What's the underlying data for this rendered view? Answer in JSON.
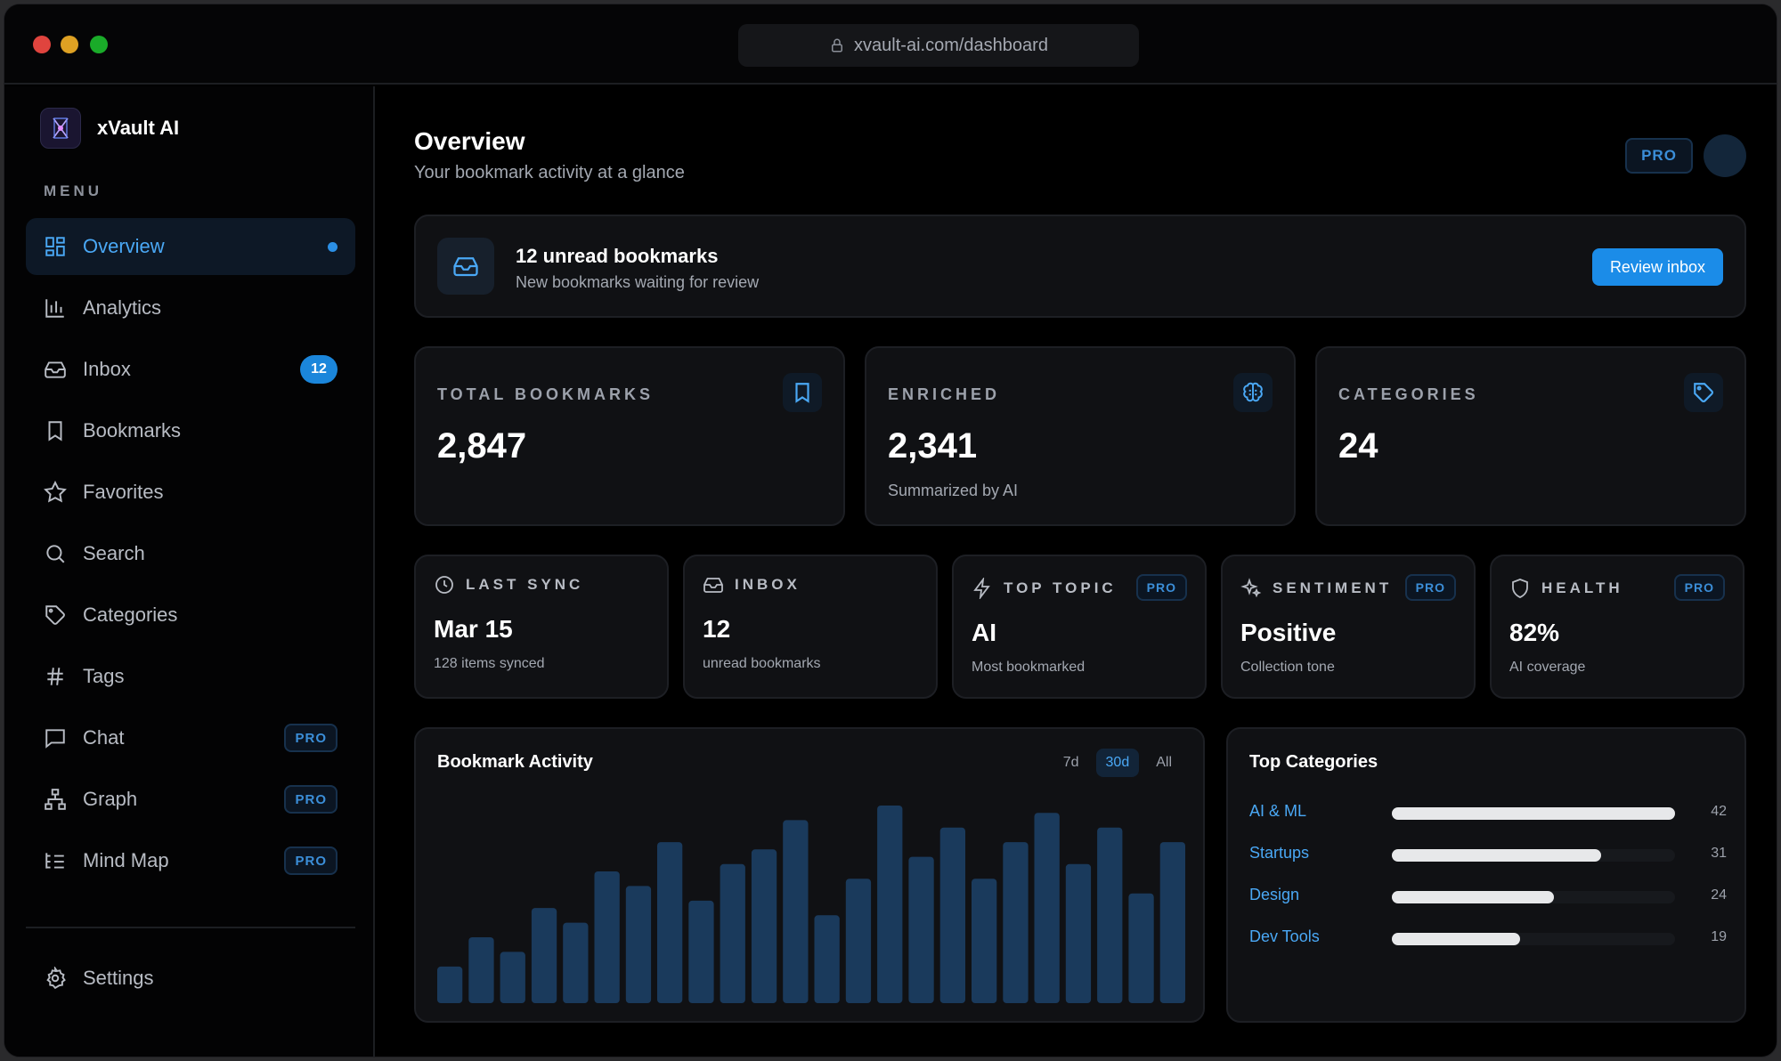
{
  "url": "xvault-ai.com/dashboard",
  "brand": {
    "name": "xVault AI"
  },
  "sidebar": {
    "menu_label": "MENU",
    "items": [
      {
        "label": "Overview",
        "icon": "grid-icon",
        "active": true
      },
      {
        "label": "Analytics",
        "icon": "bar-chart-icon"
      },
      {
        "label": "Inbox",
        "icon": "inbox-icon",
        "count": "12"
      },
      {
        "label": "Bookmarks",
        "icon": "bookmark-icon"
      },
      {
        "label": "Favorites",
        "icon": "star-icon"
      },
      {
        "label": "Search",
        "icon": "search-icon"
      },
      {
        "label": "Categories",
        "icon": "tag-icon"
      },
      {
        "label": "Tags",
        "icon": "hash-icon"
      },
      {
        "label": "Chat",
        "icon": "chat-icon",
        "badge": "PRO"
      },
      {
        "label": "Graph",
        "icon": "graph-icon",
        "badge": "PRO"
      },
      {
        "label": "Mind Map",
        "icon": "mind-map-icon",
        "badge": "PRO"
      }
    ],
    "settings_label": "Settings"
  },
  "header": {
    "title": "Overview",
    "subtitle": "Your bookmark activity at a glance",
    "plan_badge": "PRO"
  },
  "banner": {
    "title": "12 unread bookmarks",
    "subtitle": "New bookmarks waiting for review",
    "button": "Review inbox"
  },
  "stats": [
    {
      "label": "TOTAL BOOKMARKS",
      "value": "2,847",
      "note": "",
      "icon": "bookmark-icon"
    },
    {
      "label": "ENRICHED",
      "value": "2,341",
      "note": "Summarized by AI",
      "icon": "brain-icon"
    },
    {
      "label": "CATEGORIES",
      "value": "24",
      "note": "",
      "icon": "tag-icon"
    }
  ],
  "mini_stats": [
    {
      "label": "LAST SYNC",
      "value": "Mar 15",
      "note": "128 items synced",
      "icon": "clock-icon"
    },
    {
      "label": "INBOX",
      "value": "12",
      "note": "unread bookmarks",
      "icon": "inbox-icon"
    },
    {
      "label": "TOP TOPIC",
      "value": "AI",
      "note": "Most bookmarked",
      "icon": "bolt-icon",
      "badge": "PRO"
    },
    {
      "label": "SENTIMENT",
      "value": "Positive",
      "note": "Collection tone",
      "icon": "sparkle-icon",
      "badge": "PRO"
    },
    {
      "label": "HEALTH",
      "value": "82%",
      "note": "AI coverage",
      "icon": "shield-icon",
      "badge": "PRO"
    }
  ],
  "activity": {
    "title": "Bookmark Activity",
    "ranges": [
      "7d",
      "30d",
      "All"
    ],
    "active_range": "30d",
    "bar_color": "#1a3a5c"
  },
  "chart_data": {
    "type": "bar",
    "values": [
      5,
      9,
      7,
      13,
      11,
      18,
      16,
      22,
      14,
      19,
      21,
      25,
      12,
      17,
      27,
      20,
      24,
      17,
      22,
      26,
      19,
      24,
      15,
      22
    ]
  },
  "top_categories": {
    "title": "Top Categories",
    "items": [
      {
        "name": "AI & ML",
        "count": "42",
        "value": 42
      },
      {
        "name": "Startups",
        "count": "31",
        "value": 31
      },
      {
        "name": "Design",
        "count": "24",
        "value": 24
      },
      {
        "name": "Dev Tools",
        "count": "19",
        "value": 19
      }
    ]
  },
  "colors": {
    "accent": "#1b8ce8",
    "link": "#4aa8f5",
    "background": "#000000",
    "card": "#101114"
  }
}
